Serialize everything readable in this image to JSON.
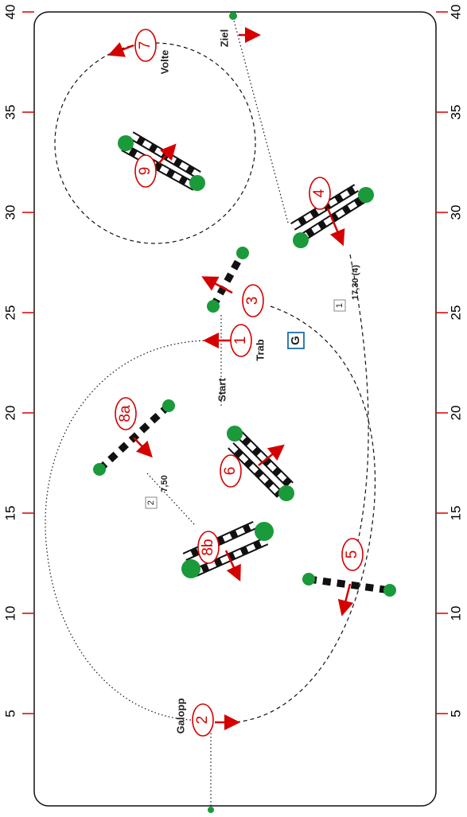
{
  "scale": [
    40,
    35,
    30,
    25,
    20,
    15,
    10,
    5
  ],
  "obstacles": [
    "1",
    "2",
    "3",
    "4",
    "5",
    "6",
    "7",
    "8a",
    "8b",
    "9"
  ],
  "labels": {
    "start": "Start",
    "trab": "Trab",
    "galopp": "Galopp",
    "volte": "Volte",
    "ziel": "Ziel",
    "gate": "G"
  },
  "distances": [
    {
      "marker": "1",
      "text": "17,30 (4)"
    },
    {
      "marker": "2",
      "text": "7,50"
    }
  ]
}
